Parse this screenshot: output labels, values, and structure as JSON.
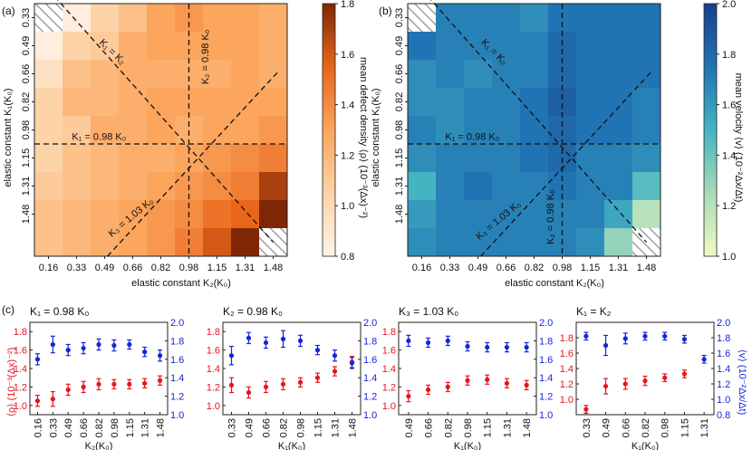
{
  "figure": {
    "panel_a_label": "(a)",
    "panel_b_label": "(b)",
    "panel_c_label": "(c)",
    "heatmap_xlabel": "elastic constant K₂(K₀)",
    "heatmap_ylabel": "elastic constant K₁(K₀)",
    "cbar_a_label": "mean defect density ⟨ρ⟩ (10⁻³(Δx)⁻²)",
    "cbar_b_label": "mean velocity ⟨v⟩ (10⁻²Δx/Δt)",
    "line_labels": {
      "k1k2": "K₁ = K₂",
      "k2": "K₂ = 0.98 K₀",
      "k1": "K₁ = 0.98 K₀",
      "k3": "K₃ = 1.03 K₀"
    },
    "c_left_ylabel": "⟨ρ⟩ (10⁻³(Δx)⁻²)",
    "c_right_ylabel": "⟨v⟩ (10⁻²Δx/Δt)"
  },
  "colors": {
    "density_low": "#fff4ea",
    "density_high": "#7f2704",
    "velocity_low": "#f2f9c4",
    "velocity_high": "#173f8d",
    "density_points": "#e8141c",
    "velocity_points": "#1427d6",
    "hatch": "#999999"
  },
  "chart_data": [
    {
      "type": "heatmap",
      "panel": "(a)",
      "x_ticks": [
        "0.16",
        "0.33",
        "0.49",
        "0.66",
        "0.82",
        "0.98",
        "1.15",
        "1.31",
        "1.48"
      ],
      "y_ticks": [
        "0.33",
        "0.49",
        "0.66",
        "0.82",
        "0.98",
        "1.15",
        "1.31",
        "1.48"
      ],
      "xlabel": "elastic constant K₂(K₀)",
      "ylabel": "elastic constant K₁(K₀)",
      "colorbar_label": "mean defect density ⟨ρ⟩ (10⁻³(Δx)⁻²)",
      "colorbar_range": [
        0.8,
        1.8
      ],
      "colorbar_ticks": [
        "0.8",
        "1.0",
        "1.2",
        "1.4",
        "1.6",
        "1.8"
      ],
      "grid_k_values": [
        0.16,
        0.33,
        0.49,
        0.66,
        0.82,
        0.98,
        1.15,
        1.31,
        1.48
      ],
      "values": [
        [
          null,
          0.85,
          1.05,
          1.15,
          1.3,
          1.35,
          1.3,
          1.3,
          1.25
        ],
        [
          0.85,
          1.05,
          1.1,
          1.25,
          1.3,
          1.3,
          1.3,
          1.3,
          1.25
        ],
        [
          0.95,
          1.15,
          1.2,
          1.25,
          1.25,
          1.25,
          1.25,
          1.3,
          1.25
        ],
        [
          1.05,
          1.2,
          1.2,
          1.25,
          1.3,
          1.3,
          1.3,
          1.3,
          1.3
        ],
        [
          1.05,
          1.1,
          1.25,
          1.25,
          1.3,
          1.25,
          1.3,
          1.3,
          1.35
        ],
        [
          1.05,
          1.15,
          1.2,
          1.25,
          1.25,
          1.3,
          1.35,
          1.4,
          1.45
        ],
        [
          1.1,
          1.15,
          1.2,
          1.25,
          1.3,
          1.35,
          1.4,
          1.45,
          1.7
        ],
        [
          1.15,
          1.2,
          1.25,
          1.3,
          1.35,
          1.4,
          1.5,
          1.55,
          1.8
        ],
        [
          1.15,
          1.2,
          1.25,
          1.3,
          1.35,
          1.45,
          1.6,
          1.8,
          null
        ]
      ]
    },
    {
      "type": "heatmap",
      "panel": "(b)",
      "x_ticks": [
        "0.16",
        "0.33",
        "0.49",
        "0.66",
        "0.82",
        "0.98",
        "1.15",
        "1.31",
        "1.48"
      ],
      "y_ticks": [
        "0.33",
        "0.49",
        "0.66",
        "0.82",
        "0.98",
        "1.15",
        "1.31",
        "1.48"
      ],
      "xlabel": "elastic constant K₂(K₀)",
      "ylabel": "elastic constant K₁(K₀)",
      "colorbar_label": "mean velocity ⟨v⟩ (10⁻²Δx/Δt)",
      "colorbar_range": [
        1.0,
        2.0
      ],
      "colorbar_ticks": [
        "1.0",
        "1.2",
        "1.4",
        "1.6",
        "1.8",
        "2.0"
      ],
      "values": [
        [
          null,
          1.7,
          1.7,
          1.7,
          1.65,
          1.75,
          1.75,
          1.75,
          1.75
        ],
        [
          1.75,
          1.7,
          1.7,
          1.7,
          1.7,
          1.8,
          1.75,
          1.75,
          1.75
        ],
        [
          1.65,
          1.7,
          1.65,
          1.7,
          1.7,
          1.8,
          1.75,
          1.75,
          1.75
        ],
        [
          1.65,
          1.65,
          1.7,
          1.7,
          1.75,
          1.85,
          1.75,
          1.75,
          1.7
        ],
        [
          1.7,
          1.65,
          1.7,
          1.7,
          1.75,
          1.8,
          1.75,
          1.75,
          1.7
        ],
        [
          1.65,
          1.7,
          1.7,
          1.7,
          1.75,
          1.8,
          1.7,
          1.7,
          1.65
        ],
        [
          1.5,
          1.7,
          1.75,
          1.7,
          1.7,
          1.75,
          1.7,
          1.7,
          1.45
        ],
        [
          1.6,
          1.7,
          1.7,
          1.7,
          1.7,
          1.7,
          1.7,
          1.55,
          1.2
        ],
        [
          1.65,
          1.7,
          1.7,
          1.7,
          1.7,
          1.7,
          1.65,
          1.3,
          null
        ]
      ]
    },
    {
      "type": "scatter",
      "panel": "(c)",
      "title": "K₁ = 0.98 K₀",
      "xlabel": "K₂(K₀)",
      "x": [
        "0.16",
        "0.33",
        "0.49",
        "0.66",
        "0.82",
        "0.98",
        "1.15",
        "1.31",
        "1.48"
      ],
      "series": [
        {
          "axis": "left",
          "values": [
            1.05,
            1.07,
            1.17,
            1.2,
            1.23,
            1.23,
            1.23,
            1.24,
            1.27
          ],
          "errors": [
            0.06,
            0.08,
            0.06,
            0.06,
            0.06,
            0.05,
            0.05,
            0.05,
            0.05
          ]
        },
        {
          "axis": "right",
          "values": [
            1.6,
            1.76,
            1.7,
            1.72,
            1.76,
            1.75,
            1.76,
            1.68,
            1.64
          ],
          "errors": [
            0.06,
            0.09,
            0.06,
            0.06,
            0.06,
            0.06,
            0.05,
            0.05,
            0.06
          ]
        }
      ],
      "ylim_left": [
        0.9,
        1.9
      ],
      "ylim_right": [
        1.0,
        2.0
      ],
      "left_ticks": [
        "1.0",
        "1.2",
        "1.4",
        "1.6",
        "1.8"
      ],
      "right_ticks": [
        "1.0",
        "1.2",
        "1.4",
        "1.6",
        "1.8",
        "2.0"
      ]
    },
    {
      "type": "scatter",
      "panel": "(c)",
      "title": "K₂ = 0.98 K₀",
      "xlabel": "K₁(K₀)",
      "x": [
        "0.33",
        "0.49",
        "0.66",
        "0.82",
        "0.98",
        "1.15",
        "1.31",
        "1.48"
      ],
      "series": [
        {
          "axis": "left",
          "values": [
            1.22,
            1.14,
            1.2,
            1.23,
            1.25,
            1.3,
            1.37,
            1.47
          ],
          "errors": [
            0.08,
            0.06,
            0.06,
            0.06,
            0.05,
            0.05,
            0.05,
            0.06
          ]
        },
        {
          "axis": "right",
          "values": [
            1.64,
            1.83,
            1.78,
            1.82,
            1.8,
            1.7,
            1.64,
            1.56
          ],
          "errors": [
            0.1,
            0.06,
            0.06,
            0.09,
            0.06,
            0.05,
            0.06,
            0.06
          ]
        }
      ],
      "ylim_left": [
        0.9,
        1.9
      ],
      "ylim_right": [
        1.0,
        2.0
      ],
      "left_ticks": [
        "1.0",
        "1.2",
        "1.4",
        "1.6",
        "1.8"
      ],
      "right_ticks": [
        "1.0",
        "1.2",
        "1.4",
        "1.6",
        "1.8",
        "2.0"
      ]
    },
    {
      "type": "scatter",
      "panel": "(c)",
      "title": "K₃ = 1.03 K₀",
      "xlabel": "K₁(K₀)",
      "x": [
        "0.49",
        "0.66",
        "0.82",
        "0.98",
        "1.15",
        "1.31",
        "1.48"
      ],
      "series": [
        {
          "axis": "left",
          "values": [
            1.1,
            1.17,
            1.2,
            1.27,
            1.28,
            1.24,
            1.22
          ],
          "errors": [
            0.06,
            0.05,
            0.05,
            0.05,
            0.05,
            0.05,
            0.05
          ]
        },
        {
          "axis": "right",
          "values": [
            1.8,
            1.78,
            1.8,
            1.74,
            1.73,
            1.73,
            1.73
          ],
          "errors": [
            0.06,
            0.05,
            0.05,
            0.05,
            0.05,
            0.05,
            0.05
          ]
        }
      ],
      "ylim_left": [
        0.9,
        1.9
      ],
      "ylim_right": [
        1.0,
        2.0
      ],
      "left_ticks": [
        "1.0",
        "1.2",
        "1.4",
        "1.6",
        "1.8"
      ],
      "right_ticks": [
        "1.0",
        "1.2",
        "1.4",
        "1.6",
        "1.8",
        "2.0"
      ]
    },
    {
      "type": "scatter",
      "panel": "(c)",
      "title": "K₁ = K₂",
      "xlabel": "K₁(K₀)",
      "x": [
        "0.33",
        "0.49",
        "0.66",
        "0.82",
        "0.98",
        "1.15",
        "1.31"
      ],
      "series": [
        {
          "axis": "left",
          "values": [
            0.87,
            1.17,
            1.2,
            1.24,
            1.28,
            1.33,
            null
          ],
          "errors": [
            0.05,
            0.1,
            0.07,
            0.06,
            0.05,
            0.05,
            null
          ]
        },
        {
          "axis": "right",
          "values": [
            1.82,
            1.7,
            1.79,
            1.82,
            1.82,
            1.78,
            1.52
          ],
          "errors": [
            0.05,
            0.13,
            0.07,
            0.05,
            0.05,
            0.05,
            0.05
          ]
        }
      ],
      "ylim_left": [
        0.8,
        2.0
      ],
      "ylim_right": [
        0.8,
        2.0
      ],
      "left_ticks": [
        "1.0",
        "1.2",
        "1.4",
        "1.6",
        "1.8"
      ],
      "right_ticks": [
        "0.8",
        "1.0",
        "1.2",
        "1.4",
        "1.6",
        "1.8",
        "2.0"
      ]
    }
  ]
}
